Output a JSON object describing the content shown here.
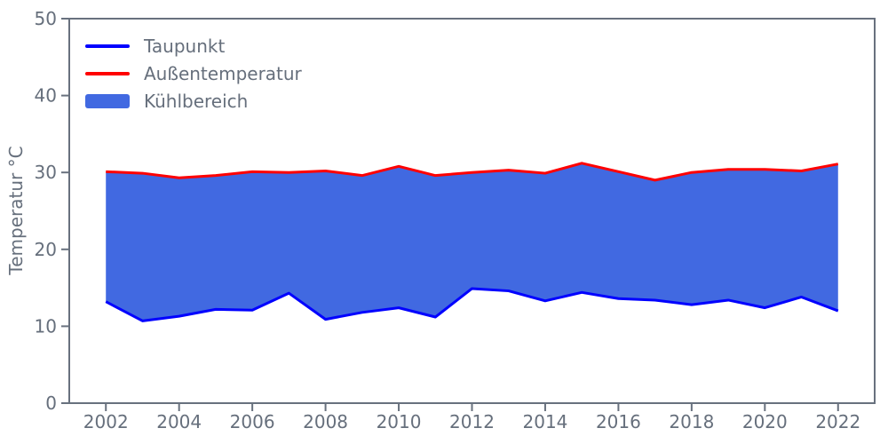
{
  "figure": {
    "background": "#ffffff"
  },
  "style": {
    "axis_color": "#68717e",
    "text_color": "#666f7c"
  },
  "chart_data": {
    "type": "area",
    "title": "",
    "xlabel": "",
    "ylabel": "Temperatur °C",
    "x": [
      2002,
      2003,
      2004,
      2005,
      2006,
      2007,
      2008,
      2009,
      2010,
      2011,
      2012,
      2013,
      2014,
      2015,
      2016,
      2017,
      2018,
      2019,
      2020,
      2021,
      2022
    ],
    "series": [
      {
        "name": "Taupunkt",
        "color": "#0000ff",
        "values": [
          13.2,
          10.7,
          11.3,
          12.2,
          12.1,
          14.3,
          10.9,
          11.8,
          12.4,
          11.2,
          14.9,
          14.6,
          13.3,
          14.4,
          13.6,
          13.4,
          12.8,
          13.4,
          12.4,
          13.8,
          12.0
        ]
      },
      {
        "name": "Außentemperatur",
        "color": "#ff0000",
        "values": [
          30.1,
          29.9,
          29.3,
          29.6,
          30.1,
          30.0,
          30.2,
          29.6,
          30.8,
          29.6,
          30.0,
          30.3,
          29.9,
          31.2,
          30.1,
          29.0,
          30.0,
          30.4,
          30.4,
          30.2,
          31.1
        ]
      }
    ],
    "area": {
      "name": "Kühlbereich",
      "color": "#4169e1",
      "fills_between": [
        "Taupunkt",
        "Außentemperatur"
      ]
    },
    "xlim": [
      2001,
      2023
    ],
    "ylim": [
      0,
      50
    ],
    "xticks": [
      2002,
      2004,
      2006,
      2008,
      2010,
      2012,
      2014,
      2016,
      2018,
      2020,
      2022
    ],
    "yticks": [
      0,
      10,
      20,
      30,
      40,
      50
    ],
    "grid": false,
    "legend": {
      "position": "upper-left",
      "items": [
        "Taupunkt",
        "Außentemperatur",
        "Kühlbereich"
      ]
    }
  }
}
